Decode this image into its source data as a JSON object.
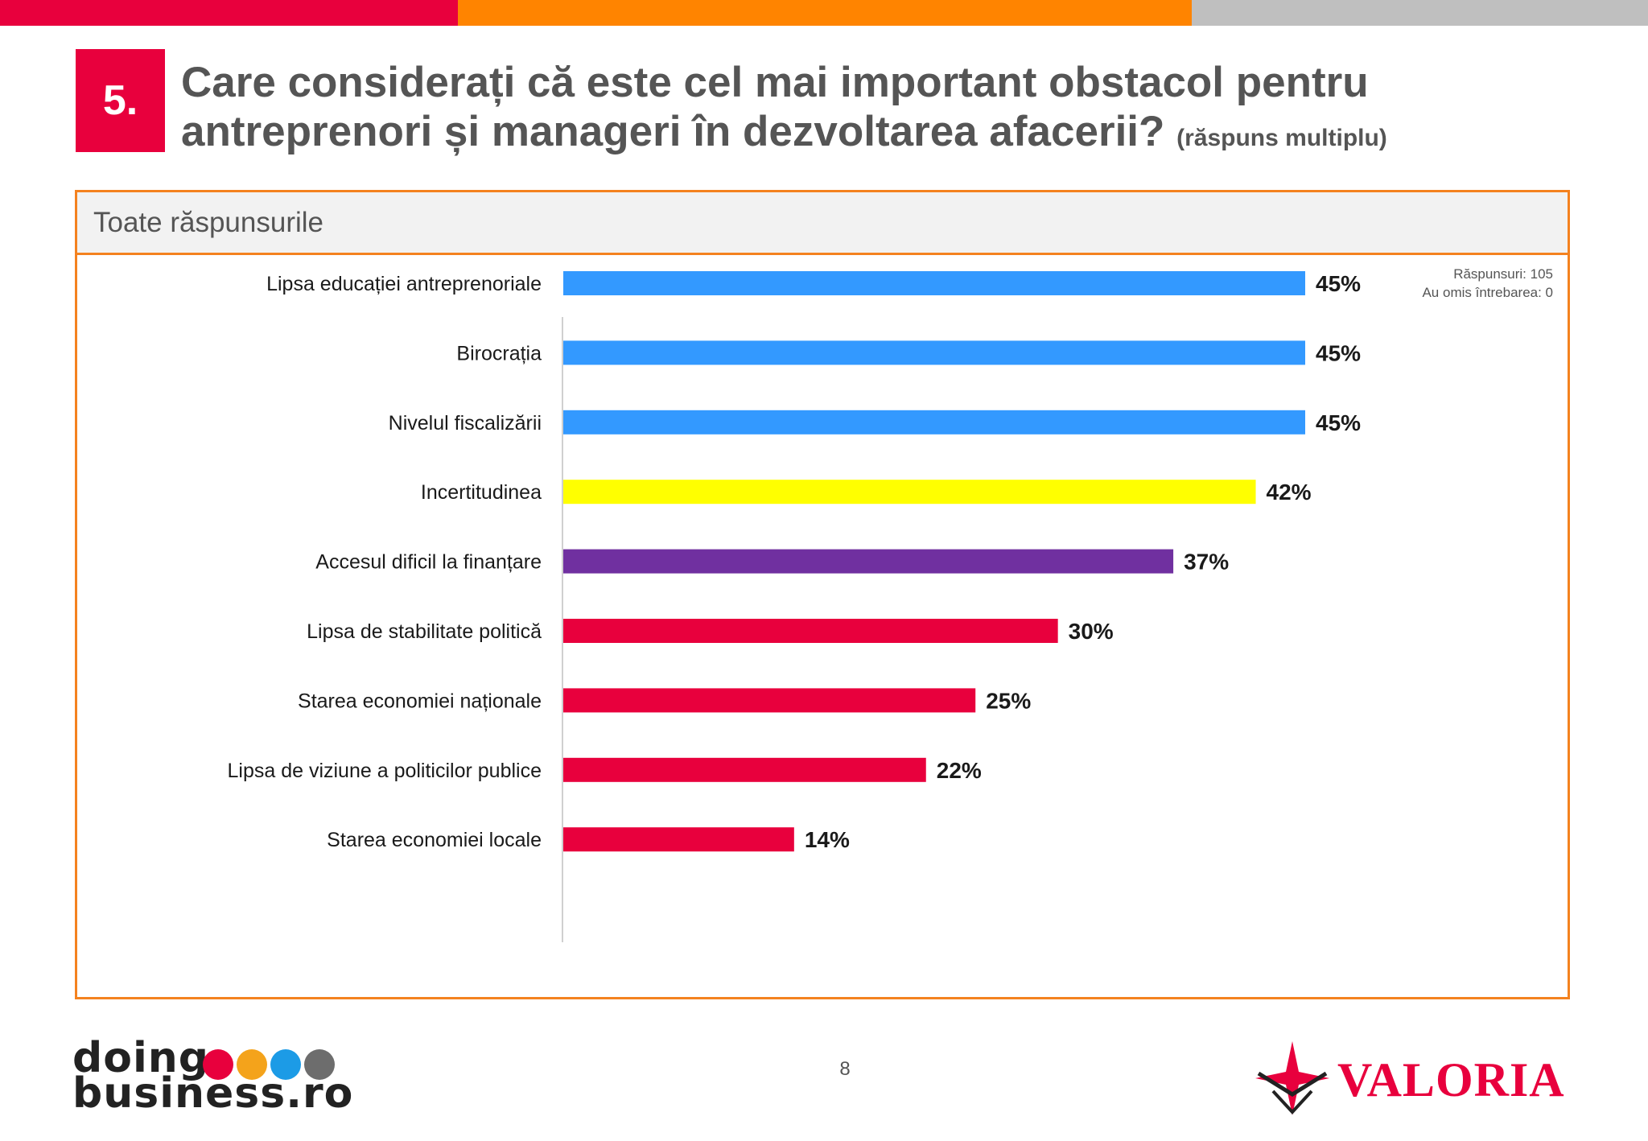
{
  "header": {
    "colors": [
      "#e8003d",
      "#ff8400",
      "#bfbfbf"
    ],
    "number": "5.",
    "title_line1": "Care considerați că este cel mai important obstacol pentru",
    "title_line2": "antreprenori și manageri în dezvoltarea afacerii?",
    "title_note": "(răspuns multiplu)"
  },
  "panel": {
    "title": "Toate răspunsurile",
    "responses": "Răspunsuri: 105",
    "skipped": "Au omis întrebarea: 0"
  },
  "chart_data": {
    "type": "bar",
    "orientation": "horizontal",
    "categories": [
      "Lipsa educației antreprenoriale",
      "Birocrația",
      "Nivelul fiscalizării",
      "Incertitudinea",
      "Accesul dificil la finanțare",
      "Lipsa de stabilitate politică",
      "Starea economiei naționale",
      "Lipsa de viziune a politicilor publice",
      "Starea economiei locale"
    ],
    "values": [
      45,
      45,
      45,
      42,
      37,
      30,
      25,
      22,
      14
    ],
    "value_labels": [
      "45%",
      "45%",
      "45%",
      "42%",
      "37%",
      "30%",
      "25%",
      "22%",
      "14%"
    ],
    "colors": [
      "#3399ff",
      "#3399ff",
      "#3399ff",
      "#ffff00",
      "#7030a0",
      "#e8003d",
      "#e8003d",
      "#e8003d",
      "#e8003d"
    ],
    "xlim": [
      0,
      45
    ],
    "grid": false,
    "legend": "none"
  },
  "footer": {
    "page_number": "8",
    "logo_left_line1": "doing",
    "logo_left_line2": "business.ro",
    "logo_left_dot_colors": [
      "#e8003d",
      "#f4a31b",
      "#1c9be6",
      "#6d6d6d"
    ],
    "logo_right": "VALORIA"
  }
}
